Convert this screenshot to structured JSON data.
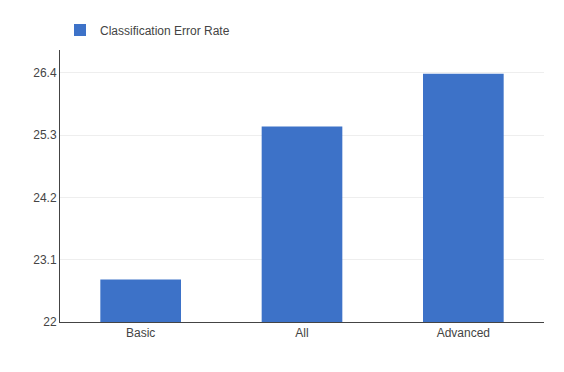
{
  "chart_data": {
    "type": "bar",
    "categories": [
      "Basic",
      "All",
      "Advanced"
    ],
    "series": [
      {
        "name": "Classification Error Rate",
        "color": "#3d72c8",
        "values": [
          22.75,
          25.45,
          26.38
        ]
      }
    ],
    "ylim": [
      22,
      26.8
    ],
    "yticks": [
      22,
      23.1,
      24.2,
      25.3,
      26.4
    ],
    "grid": true,
    "legend": "upper left"
  }
}
